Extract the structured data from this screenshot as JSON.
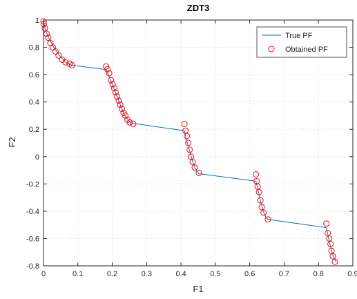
{
  "chart_data": {
    "type": "scatter",
    "title": "ZDT3",
    "xlabel": "F1",
    "ylabel": "F2",
    "xlim": [
      0,
      0.9
    ],
    "ylim": [
      -0.8,
      1
    ],
    "xticks": [
      0,
      0.1,
      0.2,
      0.3,
      0.4,
      0.5,
      0.6,
      0.7,
      0.8,
      0.9
    ],
    "xtick_labels": [
      "0",
      "0.1",
      "0.2",
      "0.3",
      "0.4",
      "0.5",
      "0.6",
      "0.7",
      "0.8",
      "0.9"
    ],
    "yticks": [
      -0.8,
      -0.6,
      -0.4,
      -0.2,
      0,
      0.2,
      0.4,
      0.6,
      0.8,
      1
    ],
    "ytick_labels": [
      "-0.8",
      "-0.6",
      "-0.4",
      "-0.2",
      "0",
      "0.2",
      "0.4",
      "0.6",
      "0.8",
      "1"
    ],
    "grid": "dotted",
    "legend_position": "top-right",
    "series": [
      {
        "name": "True PF",
        "style": "line",
        "color": "#0072BD",
        "segments": [
          [
            [
              0.0,
              1.0
            ],
            [
              0.005,
              0.93
            ],
            [
              0.015,
              0.87
            ],
            [
              0.03,
              0.8
            ],
            [
              0.05,
              0.73
            ],
            [
              0.065,
              0.69
            ],
            [
              0.083,
              0.669
            ],
            [
              0.182,
              0.637
            ]
          ],
          [
            [
              0.182,
              0.637
            ],
            [
              0.19,
              0.59
            ],
            [
              0.205,
              0.5
            ],
            [
              0.22,
              0.4
            ],
            [
              0.235,
              0.31
            ],
            [
              0.25,
              0.255
            ],
            [
              0.258,
              0.244
            ],
            [
              0.41,
              0.19
            ]
          ],
          [
            [
              0.41,
              0.19
            ],
            [
              0.415,
              0.13
            ],
            [
              0.423,
              0.06
            ],
            [
              0.432,
              -0.02
            ],
            [
              0.44,
              -0.08
            ],
            [
              0.452,
              -0.125
            ],
            [
              0.618,
              -0.18
            ]
          ],
          [
            [
              0.618,
              -0.18
            ],
            [
              0.623,
              -0.23
            ],
            [
              0.63,
              -0.31
            ],
            [
              0.638,
              -0.39
            ],
            [
              0.646,
              -0.44
            ],
            [
              0.653,
              -0.459
            ],
            [
              0.823,
              -0.52
            ]
          ],
          [
            [
              0.823,
              -0.52
            ],
            [
              0.828,
              -0.58
            ],
            [
              0.835,
              -0.66
            ],
            [
              0.843,
              -0.73
            ],
            [
              0.852,
              -0.774
            ]
          ]
        ]
      },
      {
        "name": "Obtained PF",
        "style": "marker",
        "marker": "circle",
        "color": "#FF0000",
        "x": [
          0.0,
          0.001,
          0.004,
          0.009,
          0.014,
          0.02,
          0.027,
          0.035,
          0.044,
          0.054,
          0.064,
          0.076,
          0.083,
          0.182,
          0.186,
          0.191,
          0.196,
          0.201,
          0.206,
          0.21,
          0.214,
          0.219,
          0.223,
          0.228,
          0.233,
          0.238,
          0.244,
          0.251,
          0.261,
          0.41,
          0.413,
          0.417,
          0.421,
          0.425,
          0.429,
          0.434,
          0.44,
          0.452,
          0.618,
          0.62,
          0.623,
          0.627,
          0.631,
          0.635,
          0.64,
          0.653,
          0.823,
          0.827,
          0.831,
          0.835,
          0.838,
          0.842,
          0.848
        ],
        "y": [
          0.99,
          0.97,
          0.94,
          0.9,
          0.87,
          0.83,
          0.8,
          0.77,
          0.74,
          0.71,
          0.69,
          0.68,
          0.669,
          0.66,
          0.64,
          0.61,
          0.56,
          0.53,
          0.5,
          0.47,
          0.44,
          0.41,
          0.38,
          0.35,
          0.32,
          0.3,
          0.27,
          0.25,
          0.24,
          0.24,
          0.19,
          0.15,
          0.1,
          0.05,
          0.0,
          -0.04,
          -0.08,
          -0.12,
          -0.13,
          -0.18,
          -0.22,
          -0.26,
          -0.32,
          -0.37,
          -0.41,
          -0.46,
          -0.49,
          -0.56,
          -0.6,
          -0.64,
          -0.69,
          -0.73,
          -0.77
        ]
      }
    ]
  }
}
